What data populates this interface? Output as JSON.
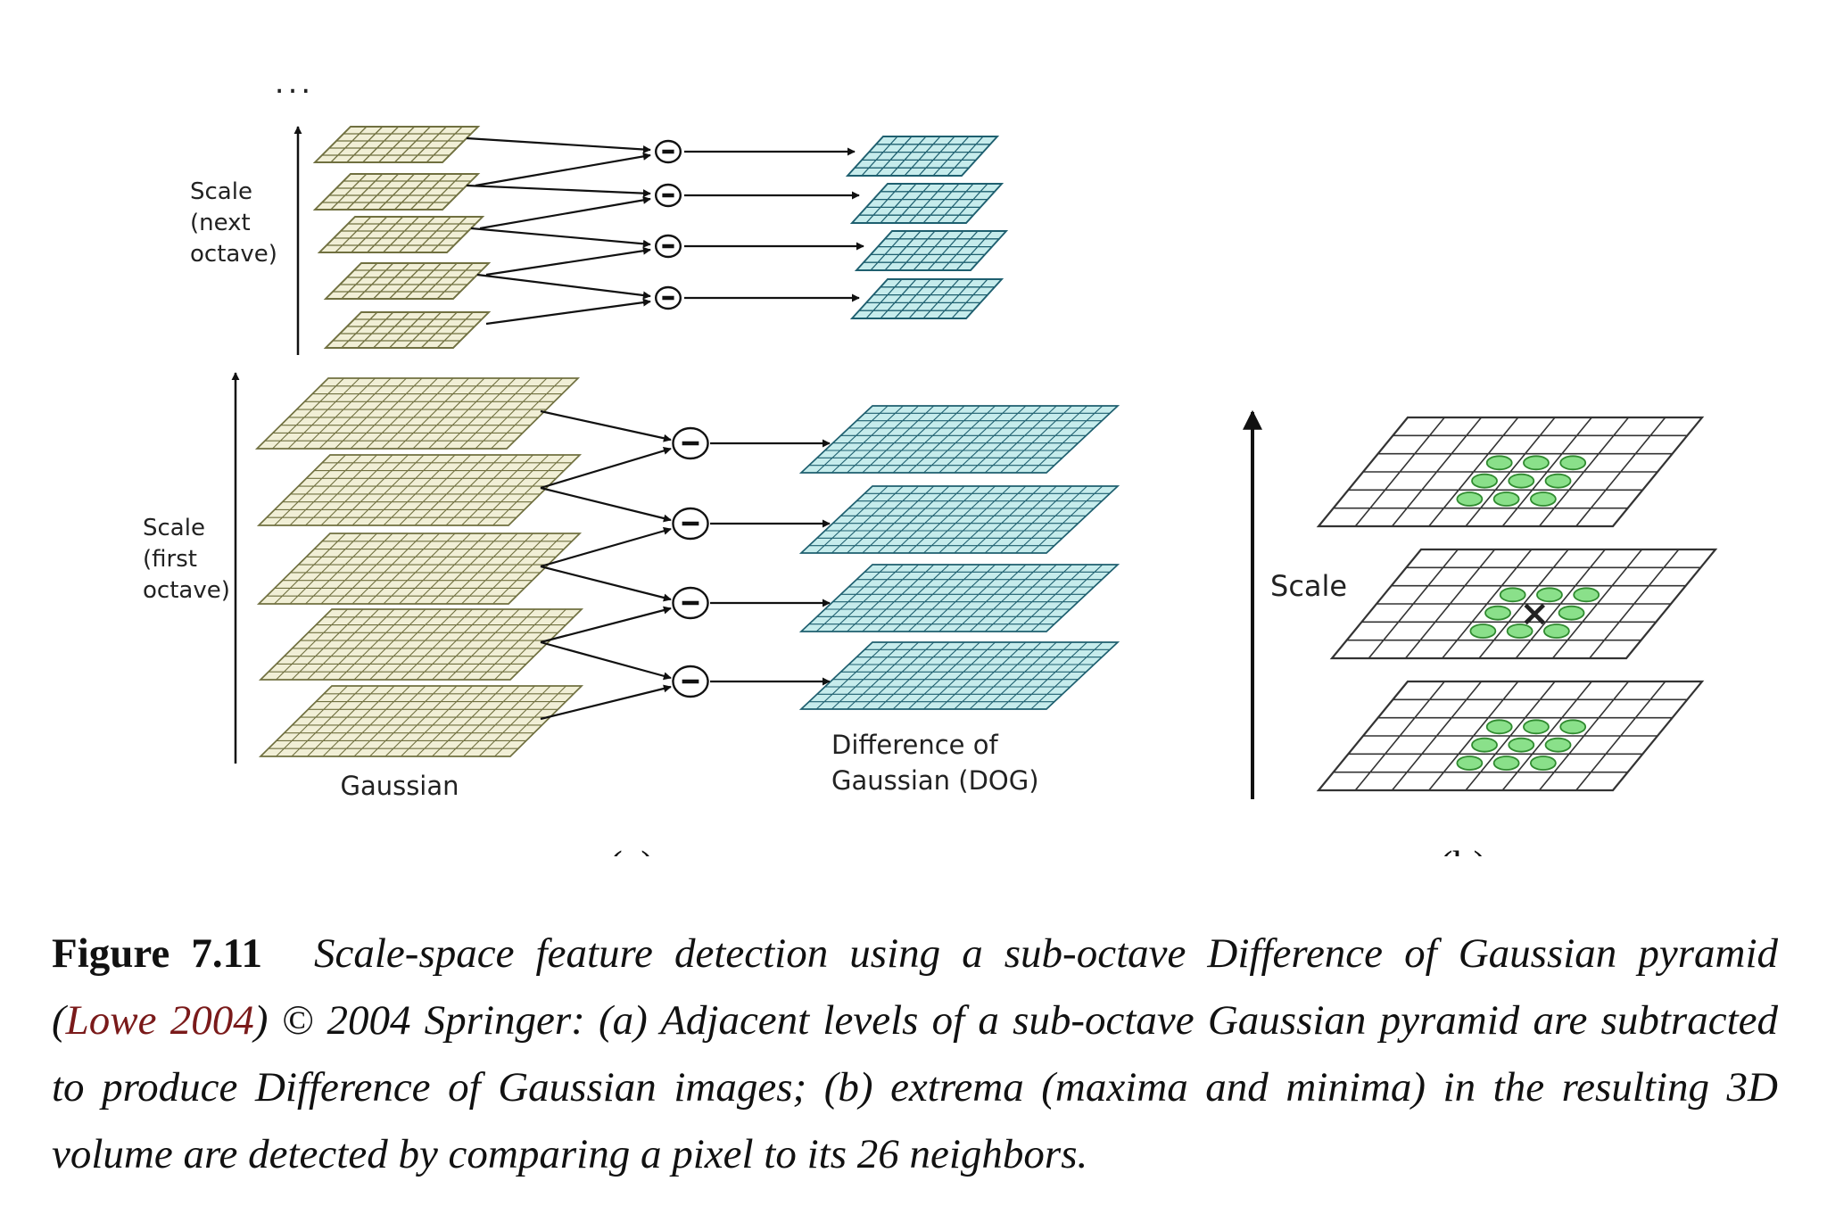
{
  "figure": {
    "top_ellipsis": "...",
    "panel_a": {
      "scale_next_octave": [
        "Scale",
        "(next",
        "octave)"
      ],
      "scale_first_octave": [
        "Scale",
        "(first",
        "octave)"
      ],
      "gaussian_label": "Gaussian",
      "dog_label": [
        "Difference of",
        "Gaussian (DOG)"
      ],
      "subtract_symbol": "−",
      "sublabel": "(a)",
      "colors": {
        "gaussian_fill": "#f1efd6",
        "gaussian_stroke": "#707040",
        "dog_fill": "#c6ecec",
        "dog_stroke": "#1e5f6f"
      }
    },
    "panel_b": {
      "scale_label": "Scale",
      "center_marker": "×",
      "neighbor_count": 26,
      "sublabel": "(b)",
      "colors": {
        "neighbor_fill": "#8ae08a",
        "neighbor_stroke": "#2f8a2f"
      }
    }
  },
  "caption": {
    "label": "Figure 7.11",
    "text_before_cite": "Scale-space feature detection using a sub-octave Difference of Gaussian pyramid (",
    "citation": "Lowe 2004",
    "text_after_cite": ") © 2004 Springer: (a) Adjacent levels of a sub-octave Gaussian pyramid are subtracted to produce Difference of Gaussian images; (b) extrema (maxima and minima) in the resulting 3D volume are detected by comparing a pixel to its 26 neighbors."
  }
}
